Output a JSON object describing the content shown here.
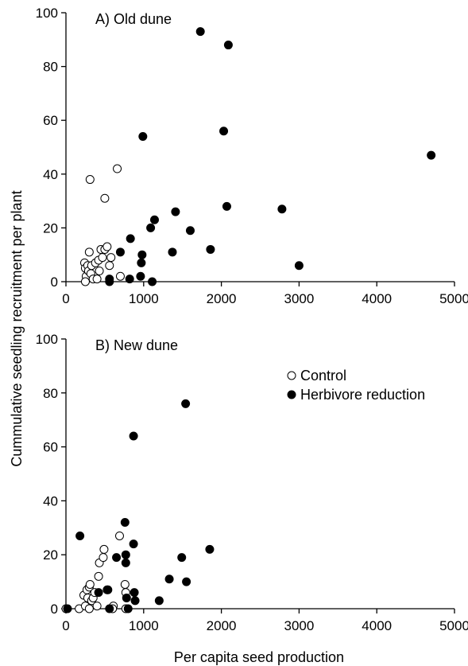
{
  "chart_data": [
    {
      "type": "scatter",
      "title": "A) Old dune",
      "xlabel": "",
      "ylabel": "",
      "xlim": [
        0,
        5000
      ],
      "ylim": [
        0,
        100
      ],
      "x_ticks": [
        "0",
        "1000",
        "2000",
        "3000",
        "4000",
        "5000"
      ],
      "y_ticks": [
        "0",
        "20",
        "40",
        "60",
        "80",
        "100"
      ],
      "grid": false,
      "series": [
        {
          "name": "Control",
          "marker": "open-circle",
          "points": [
            [
              310,
              38
            ],
            [
              660,
              42
            ],
            [
              500,
              31
            ],
            [
              240,
              7
            ],
            [
              250,
              5
            ],
            [
              260,
              2
            ],
            [
              280,
              6
            ],
            [
              290,
              4
            ],
            [
              300,
              11
            ],
            [
              320,
              3
            ],
            [
              330,
              6
            ],
            [
              350,
              1
            ],
            [
              380,
              7
            ],
            [
              400,
              1
            ],
            [
              420,
              8
            ],
            [
              450,
              12
            ],
            [
              470,
              9
            ],
            [
              500,
              12
            ],
            [
              530,
              13
            ],
            [
              560,
              6
            ],
            [
              580,
              9
            ],
            [
              700,
              2
            ],
            [
              250,
              0
            ],
            [
              430,
              4
            ]
          ]
        },
        {
          "name": "Herbivore reduction",
          "marker": "filled-circle",
          "points": [
            [
              1730,
              93
            ],
            [
              2090,
              88
            ],
            [
              990,
              54
            ],
            [
              2030,
              56
            ],
            [
              4700,
              47
            ],
            [
              1410,
              26
            ],
            [
              2070,
              28
            ],
            [
              2780,
              27
            ],
            [
              1140,
              23
            ],
            [
              1090,
              20
            ],
            [
              1600,
              19
            ],
            [
              830,
              16
            ],
            [
              1860,
              12
            ],
            [
              700,
              11
            ],
            [
              1370,
              11
            ],
            [
              980,
              10
            ],
            [
              970,
              7
            ],
            [
              3000,
              6
            ],
            [
              960,
              2
            ],
            [
              560,
              1
            ],
            [
              820,
              1
            ],
            [
              1110,
              0
            ],
            [
              560,
              0
            ]
          ]
        }
      ]
    },
    {
      "type": "scatter",
      "title": "B) New dune",
      "xlabel": "Per capita seed production",
      "ylabel": "Cummulative seedling recruitment per plant",
      "xlim": [
        0,
        5000
      ],
      "ylim": [
        0,
        100
      ],
      "x_ticks": [
        "0",
        "1000",
        "2000",
        "3000",
        "4000",
        "5000"
      ],
      "y_ticks": [
        "0",
        "20",
        "40",
        "60",
        "80",
        "100"
      ],
      "grid": false,
      "legend": {
        "position": "top-right",
        "entries": [
          "Control",
          "Herbivore reduction"
        ]
      },
      "series": [
        {
          "name": "Control",
          "marker": "open-circle",
          "points": [
            [
              0,
              0
            ],
            [
              170,
              0
            ],
            [
              230,
              5
            ],
            [
              250,
              1
            ],
            [
              270,
              7
            ],
            [
              280,
              4
            ],
            [
              300,
              8
            ],
            [
              310,
              9
            ],
            [
              330,
              3
            ],
            [
              350,
              4
            ],
            [
              370,
              6
            ],
            [
              400,
              1
            ],
            [
              420,
              12
            ],
            [
              430,
              17
            ],
            [
              480,
              19
            ],
            [
              490,
              22
            ],
            [
              530,
              7
            ],
            [
              610,
              1
            ],
            [
              690,
              27
            ],
            [
              760,
              9
            ],
            [
              770,
              6
            ],
            [
              770,
              0
            ],
            [
              300,
              0
            ],
            [
              600,
              0
            ]
          ]
        },
        {
          "name": "Herbivore reduction",
          "marker": "filled-circle",
          "points": [
            [
              1540,
              76
            ],
            [
              870,
              64
            ],
            [
              180,
              27
            ],
            [
              760,
              32
            ],
            [
              870,
              24
            ],
            [
              770,
              20
            ],
            [
              650,
              19
            ],
            [
              770,
              17
            ],
            [
              1490,
              19
            ],
            [
              1850,
              22
            ],
            [
              1330,
              11
            ],
            [
              1550,
              10
            ],
            [
              420,
              6
            ],
            [
              880,
              6
            ],
            [
              780,
              4
            ],
            [
              1200,
              3
            ],
            [
              890,
              3
            ],
            [
              540,
              7
            ],
            [
              560,
              0
            ],
            [
              800,
              0
            ],
            [
              20,
              0
            ]
          ]
        }
      ]
    }
  ]
}
